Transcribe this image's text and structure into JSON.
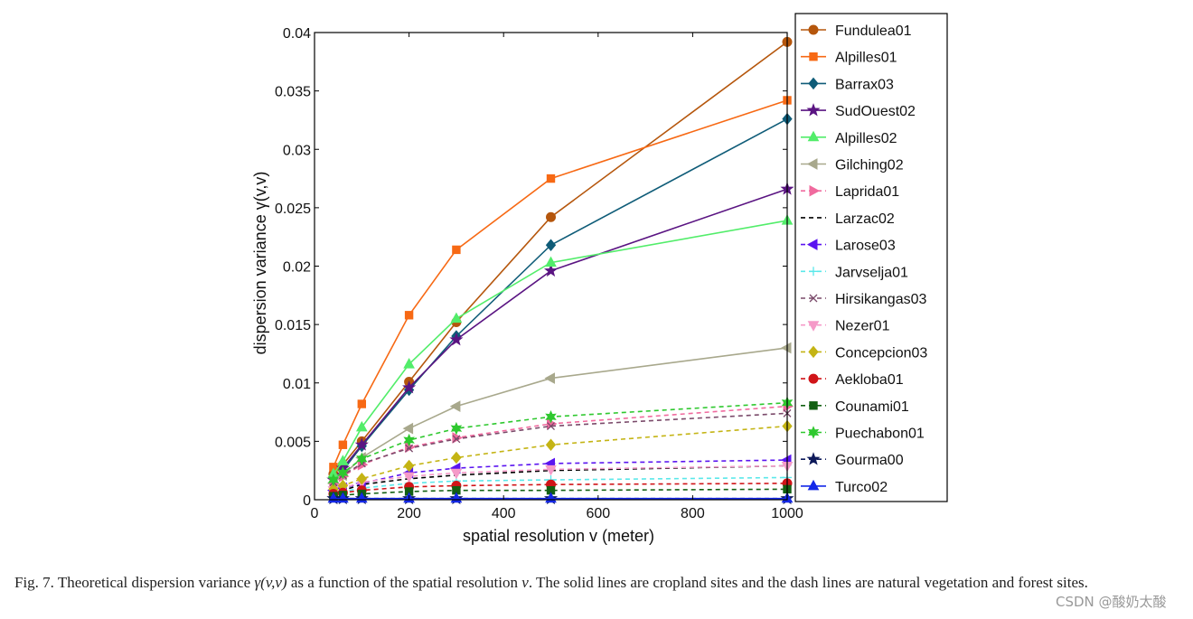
{
  "caption": {
    "fig_label": "Fig. 7.",
    "text_a": " Theoretical dispersion variance ",
    "symbol": "γ(v,v)",
    "text_b": " as a function of the spatial resolution ",
    "var": "v",
    "text_c": ". The solid lines are cropland sites and the dash lines are natural vegetation and forest sites."
  },
  "watermark": "CSDN @酸奶太酸",
  "chart_data": {
    "type": "line",
    "title": "",
    "xlabel": "spatial resolution v (meter)",
    "ylabel": "dispersion variance γ(v,v)",
    "xlim": [
      0,
      1000
    ],
    "ylim": [
      0,
      0.04
    ],
    "xticks": [
      0,
      200,
      400,
      600,
      800,
      1000
    ],
    "yticks": [
      0,
      0.005,
      0.01,
      0.015,
      0.02,
      0.025,
      0.03,
      0.035,
      0.04
    ],
    "xtick_labels": [
      "0",
      "200",
      "400",
      "600",
      "800",
      "1000"
    ],
    "ytick_labels": [
      "0",
      "0.005",
      "0.01",
      "0.015",
      "0.02",
      "0.025",
      "0.03",
      "0.035",
      "0.04"
    ],
    "grid": false,
    "legend_position": "outside right",
    "x": [
      40,
      60,
      100,
      200,
      300,
      500,
      1000
    ],
    "series": [
      {
        "name": "Fundulea01",
        "color": "#b5560c",
        "dash": false,
        "marker": "circle",
        "values": [
          0.0022,
          0.003,
          0.005,
          0.0101,
          0.0152,
          0.0242,
          0.0392
        ]
      },
      {
        "name": "Alpilles01",
        "color": "#f76914",
        "dash": false,
        "marker": "square",
        "values": [
          0.0028,
          0.0047,
          0.0082,
          0.0158,
          0.0214,
          0.0275,
          0.0342
        ]
      },
      {
        "name": "Barrax03",
        "color": "#0f5c78",
        "dash": false,
        "marker": "diamond",
        "values": [
          0.0018,
          0.0025,
          0.0046,
          0.0094,
          0.014,
          0.0218,
          0.0326
        ]
      },
      {
        "name": "SudOuest02",
        "color": "#5a1482",
        "dash": false,
        "marker": "star",
        "values": [
          0.0017,
          0.0027,
          0.0047,
          0.0096,
          0.0137,
          0.0196,
          0.0266
        ]
      },
      {
        "name": "Alpilles02",
        "color": "#52ed6a",
        "dash": false,
        "marker": "triangle-up",
        "values": [
          0.0022,
          0.0033,
          0.0062,
          0.0116,
          0.0155,
          0.0203,
          0.0239
        ]
      },
      {
        "name": "Gilching02",
        "color": "#a8a88c",
        "dash": false,
        "marker": "triangle-left",
        "values": [
          0.0014,
          0.0021,
          0.0036,
          0.0061,
          0.008,
          0.0104,
          0.013
        ]
      },
      {
        "name": "Laprida01",
        "color": "#f06a9e",
        "dash": true,
        "marker": "triangle-right",
        "values": [
          0.0014,
          0.002,
          0.003,
          0.0045,
          0.0053,
          0.0065,
          0.008
        ]
      },
      {
        "name": "Larzac02",
        "color": "#000000",
        "dash": true,
        "marker": "none",
        "values": [
          0.0006,
          0.0008,
          0.0013,
          0.0018,
          0.0021,
          0.0025,
          0.0029
        ]
      },
      {
        "name": "Larose03",
        "color": "#5a14f0",
        "dash": true,
        "marker": "triangle-left",
        "values": [
          0.0008,
          0.001,
          0.0014,
          0.0023,
          0.0027,
          0.0031,
          0.0034
        ]
      },
      {
        "name": "Jarvselja01",
        "color": "#5ae8ea",
        "dash": true,
        "marker": "plus",
        "values": [
          0.0005,
          0.0007,
          0.001,
          0.0014,
          0.0016,
          0.0017,
          0.0019
        ]
      },
      {
        "name": "Hirsikangas03",
        "color": "#7a4a6a",
        "dash": true,
        "marker": "x",
        "values": [
          0.0015,
          0.0021,
          0.0031,
          0.0044,
          0.0052,
          0.0063,
          0.0074
        ]
      },
      {
        "name": "Nezer01",
        "color": "#f59ac8",
        "dash": true,
        "marker": "triangle-down",
        "values": [
          0.0008,
          0.001,
          0.0015,
          0.002,
          0.0023,
          0.0026,
          0.0029
        ]
      },
      {
        "name": "Concepcion03",
        "color": "#c4b414",
        "dash": true,
        "marker": "diamond",
        "values": [
          0.0009,
          0.0012,
          0.0018,
          0.0029,
          0.0036,
          0.0047,
          0.0063
        ]
      },
      {
        "name": "Aekloba01",
        "color": "#d01418",
        "dash": true,
        "marker": "circle",
        "values": [
          0.0005,
          0.0006,
          0.0008,
          0.0011,
          0.0012,
          0.0013,
          0.0014
        ]
      },
      {
        "name": "Counami01",
        "color": "#126012",
        "dash": true,
        "marker": "square",
        "values": [
          0.0003,
          0.0004,
          0.0005,
          0.0007,
          0.0008,
          0.0008,
          0.0009
        ]
      },
      {
        "name": "Puechabon01",
        "color": "#2ec82e",
        "dash": true,
        "marker": "star6",
        "values": [
          0.0017,
          0.0023,
          0.0035,
          0.0051,
          0.0061,
          0.0071,
          0.0083
        ]
      },
      {
        "name": "Gourma00",
        "color": "#0e1a5a",
        "dash": true,
        "marker": "star",
        "values": [
          0.0001,
          0.0001,
          0.0001,
          0.0001,
          0.0001,
          0.0001,
          0.0001
        ]
      },
      {
        "name": "Turco02",
        "color": "#1428e8",
        "dash": false,
        "marker": "triangle-up",
        "values": [
          0.0001,
          0.0001,
          0.0001,
          0.0001,
          0.0001,
          0.0001,
          0.0001
        ]
      }
    ]
  }
}
